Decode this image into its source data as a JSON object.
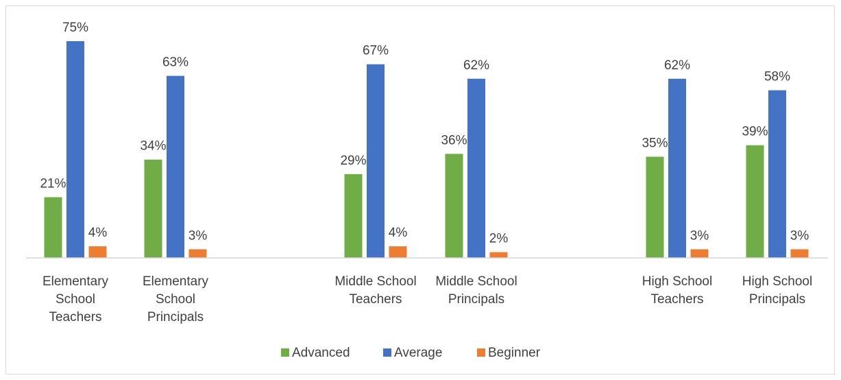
{
  "chart_data": {
    "type": "bar",
    "title": "",
    "xlabel": "",
    "ylabel": "",
    "ylim": [
      0,
      80
    ],
    "grid": false,
    "legend_position": "bottom",
    "categories": [
      [
        "Elementary",
        "School",
        "Teachers"
      ],
      [
        "Elementary",
        "School",
        "Principals"
      ],
      [
        "Middle School",
        "Teachers"
      ],
      [
        "Middle School",
        "Principals"
      ],
      [
        "High School",
        "Teachers"
      ],
      [
        "High School",
        "Principals"
      ]
    ],
    "category_groups": [
      [
        0,
        1
      ],
      [
        2,
        3
      ],
      [
        4,
        5
      ]
    ],
    "series": [
      {
        "name": "Advanced",
        "color": "#70ad47",
        "values": [
          21,
          34,
          29,
          36,
          35,
          39
        ],
        "labels": [
          "21%",
          "34%",
          "29%",
          "36%",
          "35%",
          "39%"
        ]
      },
      {
        "name": "Average",
        "color": "#4472c4",
        "values": [
          75,
          63,
          67,
          62,
          62,
          58
        ],
        "labels": [
          "75%",
          "63%",
          "67%",
          "62%",
          "62%",
          "58%"
        ]
      },
      {
        "name": "Beginner",
        "color": "#ed7d31",
        "values": [
          4,
          3,
          4,
          2,
          3,
          3
        ],
        "labels": [
          "4%",
          "3%",
          "4%",
          "2%",
          "3%",
          "3%"
        ]
      }
    ]
  }
}
